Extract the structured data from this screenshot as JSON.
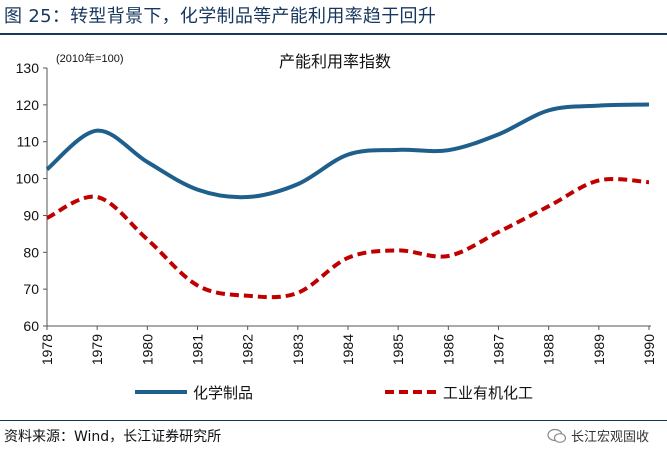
{
  "figure": {
    "title": "图 25：转型背景下，化学制品等产能利用率趋于回升",
    "source": "资料来源：Wind，长江证券研究所",
    "brand": "长江宏观固收"
  },
  "colors": {
    "title": "#17375e",
    "chemicals": "#1f5f8b",
    "industrial": "#c00000"
  },
  "chart_data": {
    "type": "line",
    "title": "产能利用率指数",
    "unit_note": "(2010年=100)",
    "xlabel": "",
    "ylabel": "",
    "ylim": [
      60,
      130
    ],
    "yticks": [
      60,
      70,
      80,
      90,
      100,
      110,
      120,
      130
    ],
    "x": [
      "1978",
      "1979",
      "1980",
      "1981",
      "1982",
      "1983",
      "1984",
      "1985",
      "1986",
      "1987",
      "1988",
      "1989",
      "1990"
    ],
    "legend_position": "bottom",
    "grid": false,
    "series": [
      {
        "name": "化学制品",
        "style": "solid",
        "color": "#1f5f8b",
        "values": [
          102.5,
          113,
          104.5,
          97,
          95,
          98.5,
          106.5,
          107.8,
          107.7,
          112,
          118.5,
          119.8,
          120.1
        ]
      },
      {
        "name": "工业有机化工",
        "style": "dashed",
        "color": "#c00000",
        "values": [
          89.3,
          95,
          83.5,
          71,
          68.2,
          69,
          78.5,
          80.5,
          79,
          85.5,
          92.5,
          99.5,
          99
        ]
      }
    ]
  }
}
